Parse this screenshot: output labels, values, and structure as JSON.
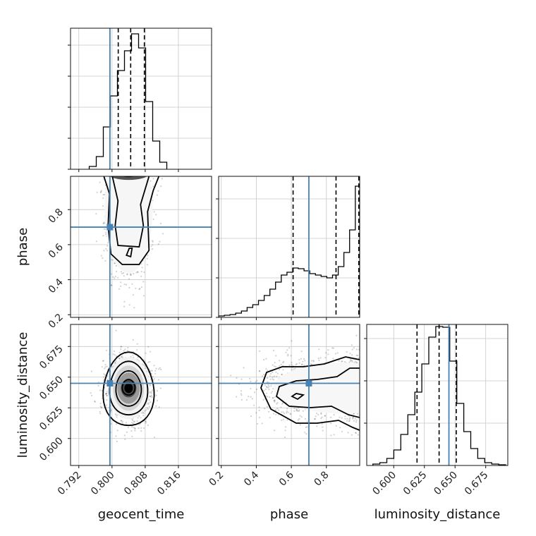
{
  "chart_data": {
    "type": "corner",
    "parameters": [
      "geocent_time",
      "phase",
      "luminosity_distance"
    ],
    "truth_color": "#4682b4",
    "truth": {
      "geocent_time": 0.7995,
      "phase": 0.7,
      "luminosity_distance": 0.645
    },
    "ranges": {
      "geocent_time": [
        0.79,
        0.824
      ],
      "phase": [
        0.185,
        0.99
      ],
      "luminosity_distance": [
        0.578,
        0.693
      ]
    },
    "ticks": {
      "geocent_time": [
        "0.792",
        "0.800",
        "0.808",
        "0.816"
      ],
      "phase_x": [
        "0.2",
        "0.4",
        "0.6",
        "0.8"
      ],
      "phase_y": [
        "0.2",
        "0.4",
        "0.6",
        "0.8"
      ],
      "luminosity_distance_x": [
        "0.600",
        "0.625",
        "0.650",
        "0.675"
      ],
      "luminosity_distance_y": [
        "0.600",
        "0.625",
        "0.650",
        "0.675"
      ]
    },
    "quantiles": {
      "geocent_time": [
        0.8015,
        0.8045,
        0.8078
      ],
      "phase": [
        0.61,
        0.855,
        0.985
      ],
      "luminosity_distance": [
        0.619,
        0.637,
        0.651
      ]
    },
    "histograms": {
      "geocent_time": {
        "edges": [
          0.7945,
          0.7962,
          0.7979,
          0.7996,
          0.8013,
          0.803,
          0.8047,
          0.8064,
          0.8081,
          0.8098,
          0.8115,
          0.8132
        ],
        "counts": [
          0.02,
          0.09,
          0.3,
          0.52,
          0.7,
          0.84,
          0.96,
          0.86,
          0.48,
          0.2,
          0.05
        ]
      },
      "phase": {
        "edges": [
          0.185,
          0.2175,
          0.25,
          0.2825,
          0.315,
          0.3475,
          0.38,
          0.4125,
          0.445,
          0.4775,
          0.51,
          0.5425,
          0.575,
          0.6075,
          0.64,
          0.6725,
          0.705,
          0.7375,
          0.77,
          0.8025,
          0.835,
          0.8675,
          0.9,
          0.9325,
          0.965,
          0.99
        ],
        "counts": [
          0.01,
          0.015,
          0.02,
          0.03,
          0.045,
          0.07,
          0.09,
          0.12,
          0.155,
          0.2,
          0.25,
          0.3,
          0.32,
          0.35,
          0.345,
          0.33,
          0.31,
          0.3,
          0.29,
          0.28,
          0.3,
          0.36,
          0.46,
          0.62,
          0.93
        ]
      },
      "luminosity_distance": {
        "edges": [
          0.583,
          0.5887,
          0.5944,
          0.6001,
          0.6058,
          0.6115,
          0.6172,
          0.6229,
          0.6286,
          0.6343,
          0.64,
          0.6457,
          0.6514,
          0.6571,
          0.6628,
          0.6685,
          0.6742,
          0.6799,
          0.6856,
          0.6913
        ],
        "counts": [
          0.01,
          0.02,
          0.05,
          0.11,
          0.22,
          0.36,
          0.52,
          0.72,
          0.91,
          0.985,
          0.98,
          0.74,
          0.44,
          0.24,
          0.12,
          0.05,
          0.02,
          0.01,
          0.005
        ]
      }
    },
    "scatter_centers": {
      "geocent_time_phase": {
        "x": 0.804,
        "y": 0.72,
        "sx": 0.0026,
        "sy": 0.16
      },
      "geocent_time_luminosity_distance": {
        "x": 0.804,
        "y": 0.641,
        "sx": 0.0026,
        "sy": 0.013
      },
      "phase_luminosity_distance": {
        "x": 0.74,
        "y": 0.641,
        "sx": 0.17,
        "sy": 0.013
      }
    },
    "grid": true,
    "legend": "none"
  }
}
